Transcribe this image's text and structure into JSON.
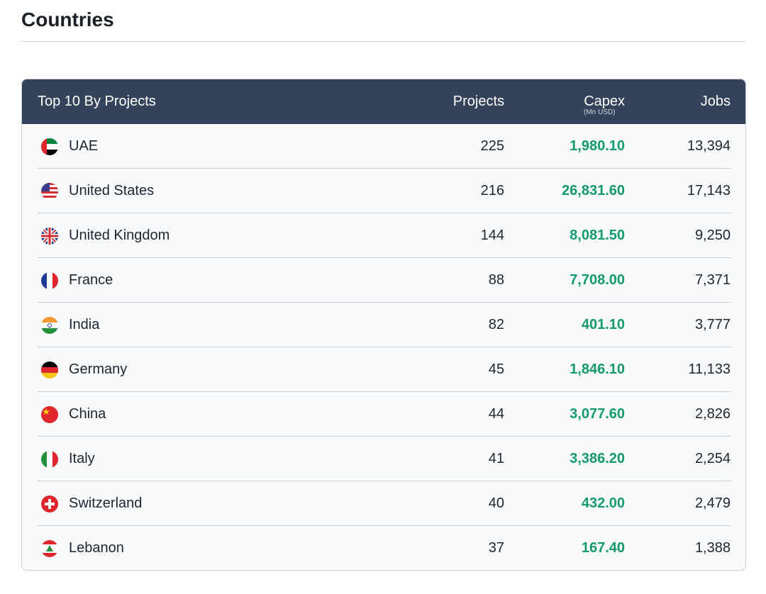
{
  "header": {
    "title": "Countries"
  },
  "table": {
    "columns": [
      "Top 10 By Projects",
      "Projects",
      "Capex",
      "Jobs"
    ],
    "capex_unit": "(Mn USD)",
    "rows": [
      [
        "UAE",
        "225",
        "1,980.10",
        "13,394"
      ],
      [
        "United States",
        "216",
        "26,831.60",
        "17,143"
      ],
      [
        "United Kingdom",
        "144",
        "8,081.50",
        "9,250"
      ],
      [
        "France",
        "88",
        "7,708.00",
        "7,371"
      ],
      [
        "India",
        "82",
        "401.10",
        "3,777"
      ],
      [
        "Germany",
        "45",
        "1,846.10",
        "11,133"
      ],
      [
        "China",
        "44",
        "3,077.60",
        "2,826"
      ],
      [
        "Italy",
        "41",
        "3,386.20",
        "2,254"
      ],
      [
        "Switzerland",
        "40",
        "432.00",
        "2,479"
      ],
      [
        "Lebanon",
        "37",
        "167.40",
        "1,388"
      ]
    ]
  }
}
